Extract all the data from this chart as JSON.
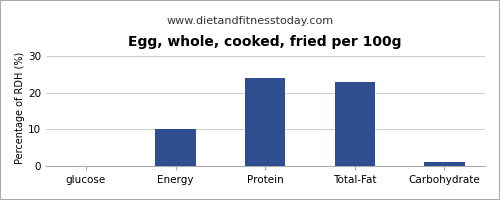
{
  "title": "Egg, whole, cooked, fried per 100g",
  "subtitle": "www.dietandfitnesstoday.com",
  "ylabel": "Percentage of RDH (%)",
  "categories": [
    "glucose",
    "Energy",
    "Protein",
    "Total-Fat",
    "Carbohydrate"
  ],
  "values": [
    0,
    10,
    24,
    23,
    1
  ],
  "bar_color": "#2e4e8f",
  "ylim": [
    0,
    32
  ],
  "yticks": [
    0,
    10,
    20,
    30
  ],
  "background_color": "#e8e8e8",
  "plot_background": "#ffffff",
  "outer_background": "#ffffff",
  "title_fontsize": 10,
  "subtitle_fontsize": 8,
  "ylabel_fontsize": 7,
  "tick_fontsize": 7.5,
  "bar_width": 0.45
}
